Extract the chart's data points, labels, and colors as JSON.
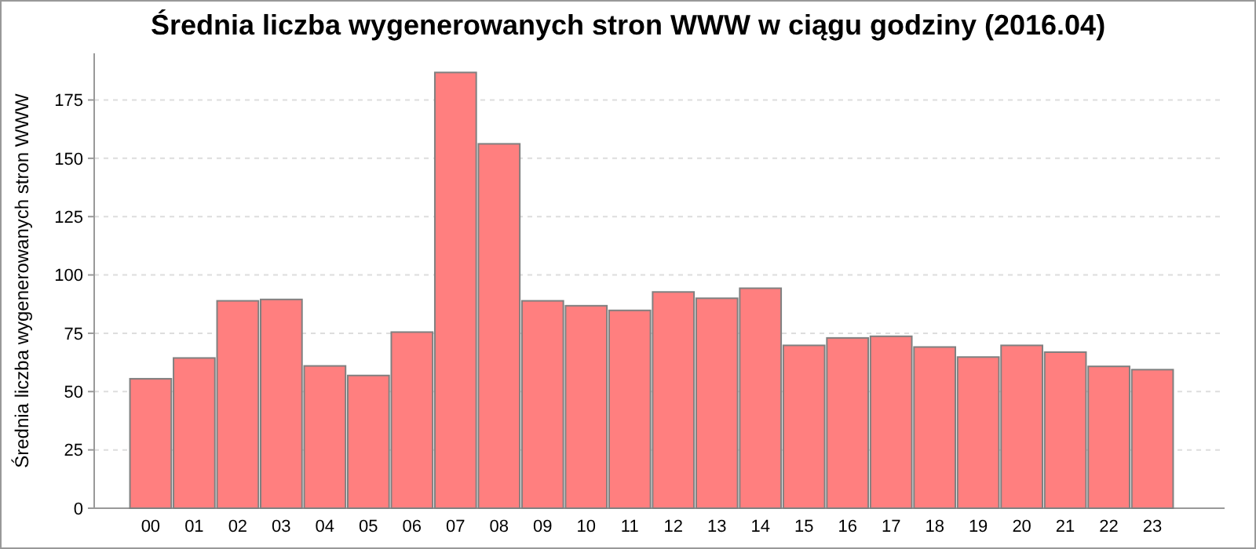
{
  "chart_data": {
    "type": "bar",
    "title": "Średnia liczba wygenerowanych stron WWW w ciągu godziny (2016.04)",
    "ylabel": "Średnia liczba wygenerowanych stron WWW",
    "categories": [
      "00",
      "01",
      "02",
      "03",
      "04",
      "05",
      "06",
      "07",
      "08",
      "09",
      "10",
      "11",
      "12",
      "13",
      "14",
      "15",
      "16",
      "17",
      "18",
      "19",
      "20",
      "21",
      "22",
      "23"
    ],
    "values": [
      55.5,
      64.4,
      88.9,
      89.5,
      61,
      56.9,
      75.5,
      186.8,
      156.2,
      88.9,
      86.8,
      84.8,
      92.7,
      90,
      94.3,
      69.8,
      73,
      73.7,
      69.1,
      64.8,
      69.8,
      66.9,
      60.8,
      59.4
    ],
    "color": "#ff7f7f",
    "ylim": [
      0,
      195
    ],
    "yticks": [
      0,
      25,
      50,
      75,
      100,
      125,
      150,
      175
    ],
    "grid": "y"
  }
}
